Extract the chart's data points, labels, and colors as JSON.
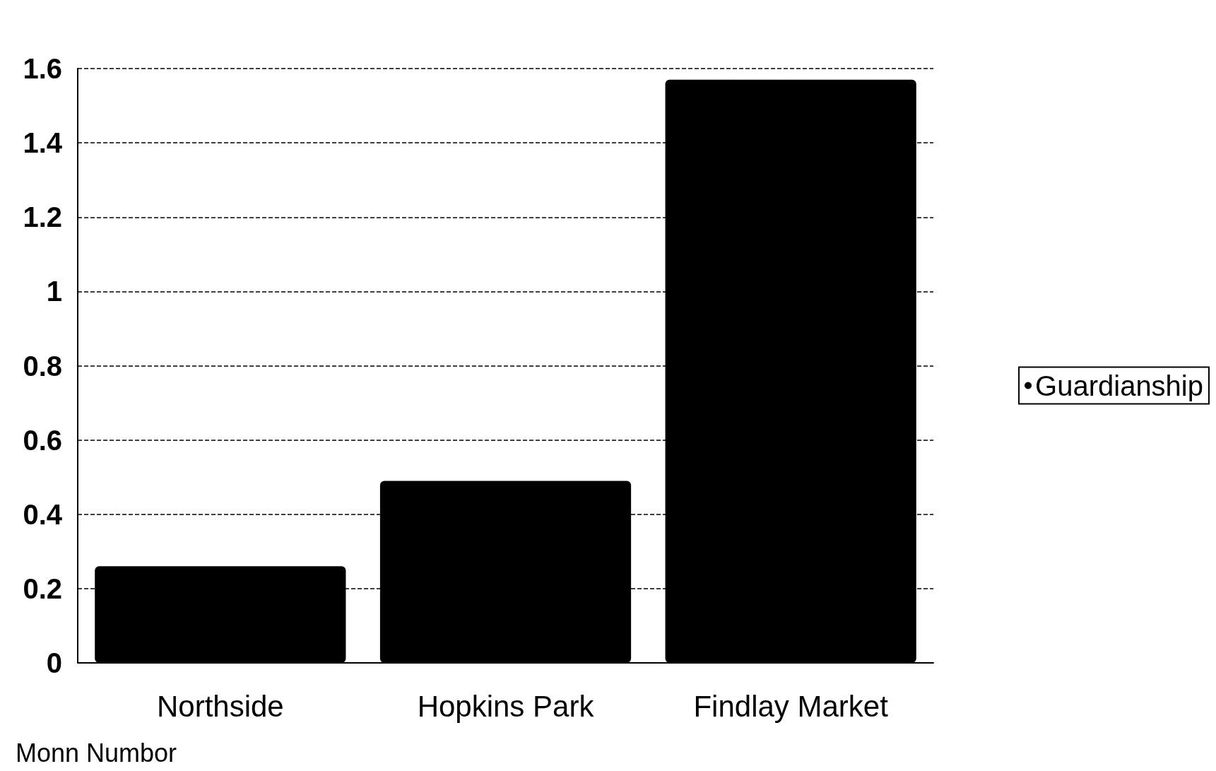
{
  "chart_data": {
    "type": "bar",
    "categories": [
      "Northside",
      "Hopkins Park",
      "Findlay Market"
    ],
    "series": [
      {
        "name": "Guardianship",
        "color": "#000000",
        "values": [
          0.26,
          0.49,
          1.57
        ]
      }
    ],
    "ylim": [
      0,
      1.6
    ],
    "yticks": [
      0,
      0.2,
      0.4,
      0.6,
      0.8,
      1,
      1.2,
      1.4,
      1.6
    ],
    "grid": "y",
    "legend": "right",
    "annotations": [
      "Monn Numbor"
    ]
  }
}
